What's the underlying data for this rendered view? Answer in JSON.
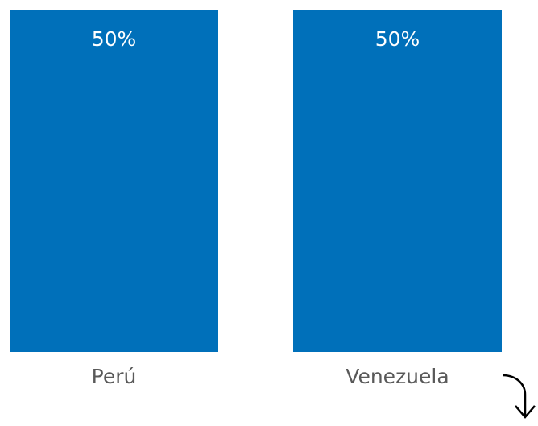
{
  "chart_data": {
    "type": "bar",
    "categories": [
      "Perú",
      "Venezuela"
    ],
    "values": [
      50,
      50
    ],
    "value_labels": [
      "50%",
      "50%"
    ],
    "ylim": [
      0,
      50
    ],
    "title": "",
    "xlabel": "",
    "ylabel": "",
    "grid": false,
    "legend": "none"
  },
  "colors": {
    "bar": "#0070BA",
    "bar_label": "#ffffff",
    "category_label": "#595959",
    "arrow": "#000000"
  },
  "icons": {
    "corner_arrow": "curved-down-arrow-icon"
  }
}
